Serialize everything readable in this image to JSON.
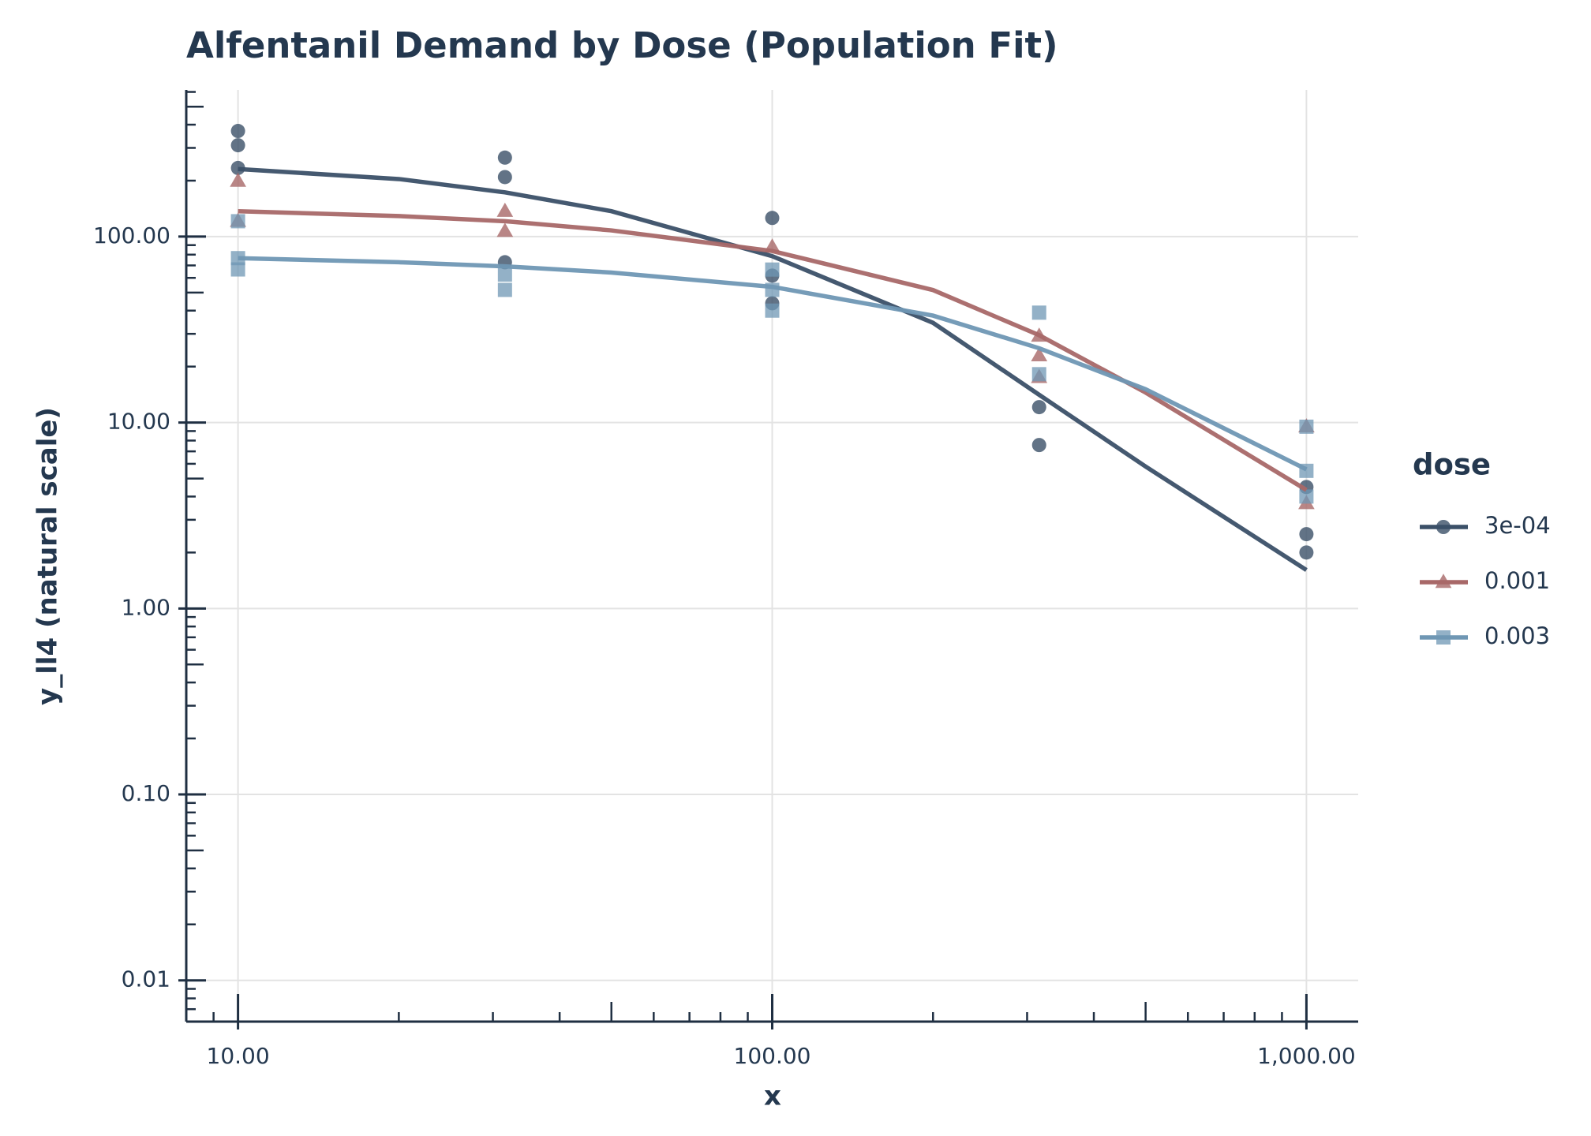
{
  "chart_data": {
    "type": "scatter",
    "title": "Alfentanil Demand by Dose (Population Fit)",
    "x_label": "x",
    "y_label": "y_ll4 (natural scale)",
    "legend_title": "dose",
    "legend": "right",
    "log_x": true,
    "log_y": true,
    "grid": true,
    "xlim": [
      8,
      1250
    ],
    "ylim": [
      0.006,
      615
    ],
    "xticks": [
      {
        "value": 10,
        "label": "10.00"
      },
      {
        "value": 100,
        "label": "100.00"
      },
      {
        "value": 1000,
        "label": "1,000.00"
      }
    ],
    "yticks": [
      0.01,
      {
        "value": 0.1,
        "label": "0.10"
      },
      {
        "value": 1,
        "label": "1.00"
      },
      {
        "value": 10,
        "label": "10.00"
      },
      {
        "value": 100,
        "label": "100.00"
      }
    ],
    "series": [
      {
        "name": "3e-04",
        "color": "#3b5068",
        "marker": "circle",
        "x": [
          10,
          10,
          10,
          31.6,
          31.6,
          31.6,
          100,
          100,
          100,
          316,
          316,
          1000,
          1000,
          1000
        ],
        "values": [
          370,
          310,
          234,
          266,
          209,
          72.8,
          126,
          61.7,
          43.8,
          12.1,
          7.57,
          4.5,
          2.51,
          2.0
        ],
        "fit_x": [
          10,
          20,
          31.6,
          50,
          100,
          200,
          316,
          500,
          1000
        ],
        "fit_values": [
          231,
          204,
          173,
          137,
          78.5,
          34.4,
          14.1,
          5.8,
          1.61
        ]
      },
      {
        "name": "0.001",
        "color": "#a86868",
        "marker": "triangle",
        "x": [
          10,
          10,
          31.6,
          31.6,
          100,
          316,
          316,
          316,
          1000,
          1000
        ],
        "values": [
          199,
          121,
          137,
          107,
          88,
          29.2,
          22.9,
          17.5,
          9.5,
          3.67
        ],
        "fit_x": [
          10,
          20,
          31.6,
          50,
          100,
          200,
          316,
          500,
          1000
        ],
        "fit_values": [
          137,
          129,
          121,
          108,
          83.7,
          51.6,
          29.5,
          14.5,
          4.34
        ]
      },
      {
        "name": "0.003",
        "color": "#6f97b4",
        "marker": "square",
        "x": [
          10,
          10,
          10,
          31.6,
          31.6,
          100,
          100,
          100,
          316,
          316,
          1000,
          1000,
          1000
        ],
        "values": [
          121,
          76.6,
          66.6,
          62.5,
          51.7,
          66.5,
          51.7,
          40,
          39,
          18.2,
          9.5,
          5.5,
          4.0
        ],
        "fit_x": [
          10,
          20,
          31.6,
          50,
          100,
          200,
          316,
          500,
          1000
        ],
        "fit_values": [
          76.6,
          72.8,
          69.2,
          64.1,
          53.7,
          37.6,
          25.1,
          15.1,
          5.6
        ]
      }
    ]
  }
}
